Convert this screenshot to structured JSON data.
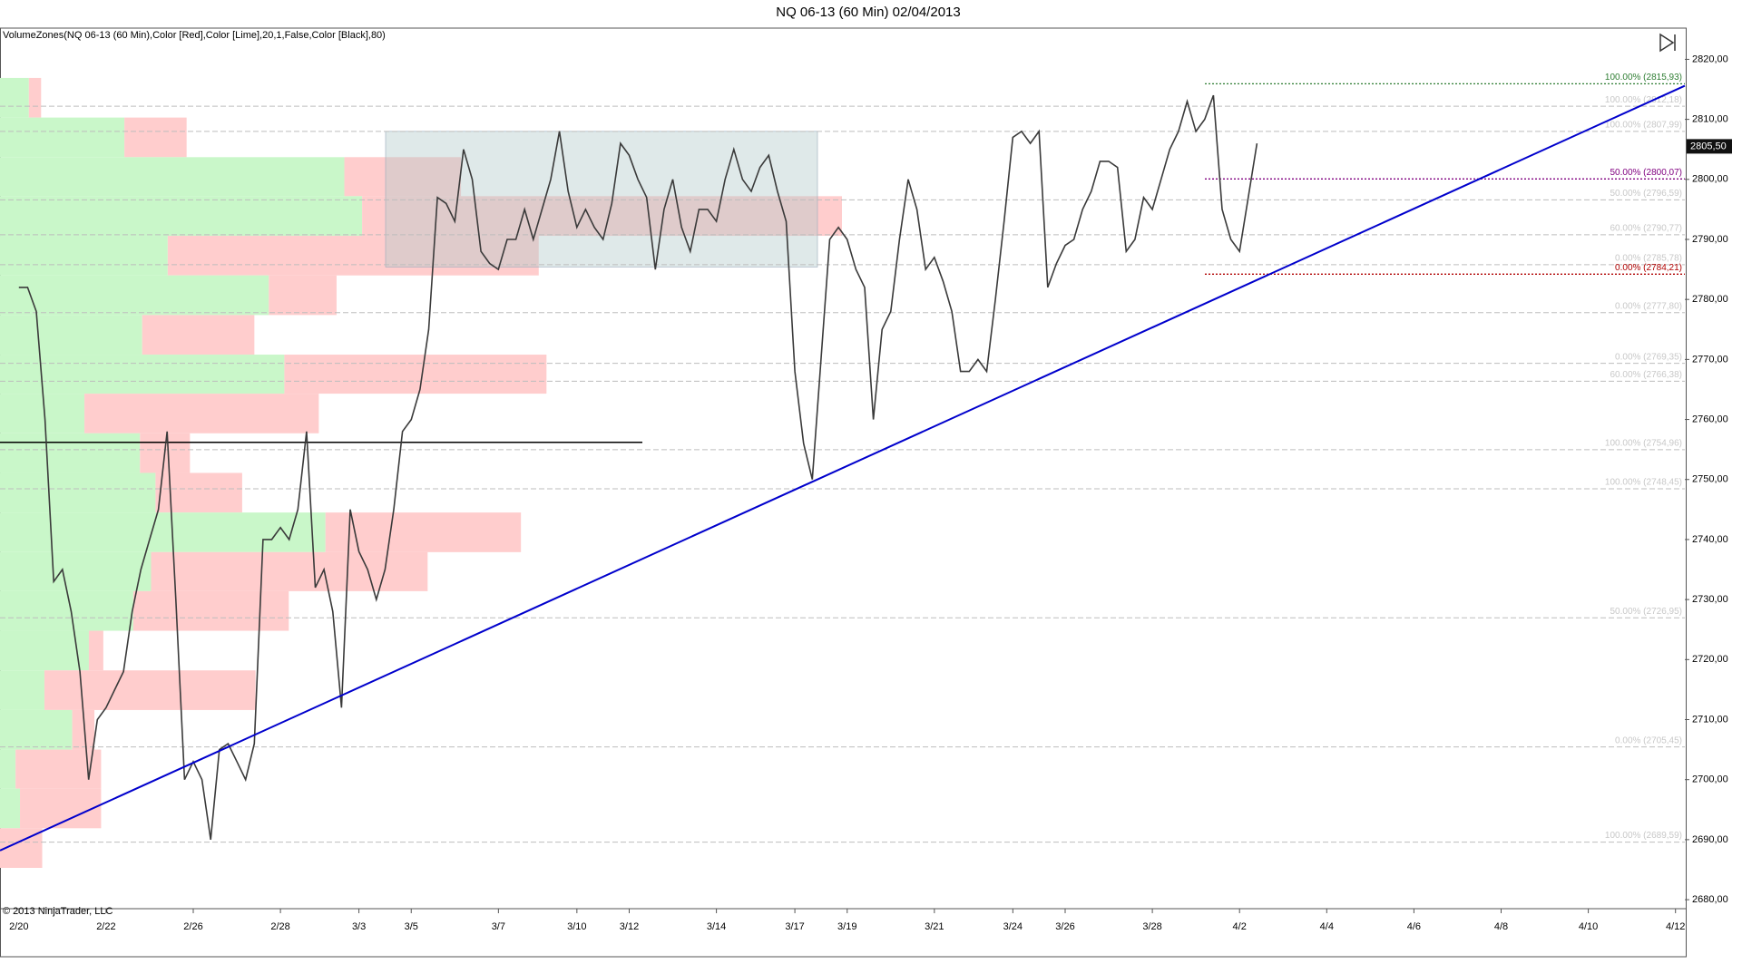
{
  "chart_data": {
    "type": "price-bars",
    "title": "NQ 06-13 (60 Min)  02/04/2013",
    "indicator_label": "VolumeZones(NQ 06-13 (60 Min),Color [Red],Color [Lime],20,1,False,Color [Black],80)",
    "copyright": "© 2013 NinjaTrader, LLC",
    "categories": [
      "2/20",
      null,
      null,
      null,
      null,
      null,
      null,
      null,
      null,
      null,
      "2/22",
      null,
      null,
      null,
      null,
      null,
      null,
      null,
      null,
      null,
      "2/26",
      null,
      null,
      null,
      null,
      null,
      null,
      null,
      null,
      null,
      "2/28",
      null,
      null,
      null,
      null,
      null,
      null,
      null,
      null,
      "3/3",
      null,
      null,
      null,
      null,
      null,
      "3/5",
      null,
      null,
      null,
      null,
      null,
      null,
      null,
      null,
      null,
      "3/7",
      null,
      null,
      null,
      null,
      null,
      null,
      null,
      null,
      "3/10",
      null,
      null,
      null,
      null,
      null,
      "3/12",
      null,
      null,
      null,
      null,
      null,
      null,
      null,
      null,
      null,
      "3/14",
      null,
      null,
      null,
      null,
      null,
      null,
      null,
      null,
      "3/17",
      null,
      null,
      null,
      null,
      null,
      "3/19",
      null,
      null,
      null,
      null,
      null,
      null,
      null,
      null,
      null,
      "3/21",
      null,
      null,
      null,
      null,
      null,
      null,
      null,
      null,
      "3/24",
      null,
      null,
      null,
      null,
      null,
      "3/26",
      null,
      null,
      null,
      null,
      null,
      null,
      null,
      null,
      null,
      "3/28",
      null,
      null,
      null,
      null,
      null,
      null,
      null,
      null,
      null,
      "4/2",
      null,
      null,
      null,
      null,
      null,
      null,
      null,
      null,
      null,
      "4/4",
      null,
      null,
      null,
      null,
      null,
      null,
      null,
      null,
      null,
      "4/6",
      null,
      null,
      null,
      null,
      null,
      null,
      null,
      null,
      null,
      "4/8",
      null,
      null,
      null,
      null,
      null,
      null,
      null,
      null,
      null,
      "4/10",
      null,
      null,
      null,
      null,
      null,
      null,
      null,
      null,
      null,
      "4/12"
    ],
    "series": [
      {
        "color": "#3a3a3a",
        "values": [
          2782,
          2782,
          2778,
          2760,
          2733,
          2735,
          2728,
          2718,
          2700,
          2710,
          2712,
          2715,
          2718,
          2728,
          2735,
          2740,
          2745,
          2758,
          2730,
          2700,
          2703,
          2700,
          2690,
          2705,
          2706,
          2703,
          2700,
          2706,
          2740,
          2740,
          2742,
          2740,
          2745,
          2758,
          2732,
          2735,
          2728,
          2712,
          2745,
          2738,
          2735,
          2730,
          2735,
          2745,
          2758,
          2760,
          2765,
          2775,
          2797,
          2796,
          2793,
          2805,
          2800,
          2788,
          2786,
          2785,
          2790,
          2790,
          2795,
          2790,
          2795,
          2800,
          2808,
          2798,
          2792,
          2795,
          2792,
          2790,
          2796,
          2806,
          2804,
          2800,
          2797,
          2785,
          2795,
          2800,
          2792,
          2788,
          2795,
          2795,
          2793,
          2800,
          2805,
          2800,
          2798,
          2802,
          2804,
          2798,
          2793,
          2768,
          2756,
          2750,
          2770,
          2790,
          2792,
          2790,
          2785,
          2782,
          2760,
          2775,
          2778,
          2790,
          2800,
          2795,
          2785,
          2787,
          2783,
          2778,
          2768,
          2768,
          2770,
          2768,
          2780,
          2793,
          2807,
          2808,
          2806,
          2808,
          2782,
          2786,
          2789,
          2790,
          2795,
          2798,
          2803,
          2803,
          2802,
          2788,
          2790,
          2797,
          2795,
          2800,
          2805,
          2808,
          2813,
          2808,
          2810,
          2814,
          2795,
          2790,
          2788,
          2797,
          2806,
          null,
          null,
          null,
          null,
          null,
          null,
          null,
          null,
          null,
          null,
          null,
          null,
          null,
          null,
          null,
          null,
          null,
          null,
          null,
          null,
          null,
          null,
          null,
          null,
          null,
          null,
          null,
          null,
          null,
          null,
          null,
          null,
          null,
          null,
          null,
          null,
          null,
          null,
          null,
          null,
          null,
          null,
          null,
          null,
          null,
          null,
          null,
          null
        ]
      }
    ],
    "ylim": [
      2678.5,
      2825.2
    ],
    "yticks": [
      {
        "value": 2680,
        "label": "2680,00"
      },
      {
        "value": 2690,
        "label": "2690,00"
      },
      {
        "value": 2700,
        "label": "2700,00"
      },
      {
        "value": 2710,
        "label": "2710,00"
      },
      {
        "value": 2720,
        "label": "2720,00"
      },
      {
        "value": 2730,
        "label": "2730,00"
      },
      {
        "value": 2740,
        "label": "2740,00"
      },
      {
        "value": 2750,
        "label": "2750,00"
      },
      {
        "value": 2760,
        "label": "2760,00"
      },
      {
        "value": 2770,
        "label": "2770,00"
      },
      {
        "value": 2780,
        "label": "2780,00"
      },
      {
        "value": 2790,
        "label": "2790,00"
      },
      {
        "value": 2800,
        "label": "2800,00"
      },
      {
        "value": 2810,
        "label": "2810,00"
      },
      {
        "value": 2820,
        "label": "2820,00"
      }
    ],
    "last_price": {
      "value": 2805.5,
      "label": "2805,50"
    },
    "buy_color": "#c9f7c9",
    "sell_color": "#ffcdcd",
    "volume_zones": [
      {
        "high": 2816.9,
        "low": 2810.3,
        "buy": 26,
        "sell": 11
      },
      {
        "high": 2810.3,
        "low": 2803.7,
        "buy": 112,
        "sell": 56
      },
      {
        "high": 2803.7,
        "low": 2797.2,
        "buy": 310,
        "sell": 105
      },
      {
        "high": 2797.2,
        "low": 2790.6,
        "buy": 326,
        "sell": 432
      },
      {
        "high": 2790.6,
        "low": 2784.0,
        "buy": 151,
        "sell": 334
      },
      {
        "high": 2784.0,
        "low": 2777.4,
        "buy": 242,
        "sell": 61
      },
      {
        "high": 2777.4,
        "low": 2770.8,
        "buy": 128,
        "sell": 101
      },
      {
        "high": 2770.8,
        "low": 2764.3,
        "buy": 256,
        "sell": 236
      },
      {
        "high": 2764.3,
        "low": 2757.7,
        "buy": 76,
        "sell": 211
      },
      {
        "high": 2757.7,
        "low": 2751.1,
        "buy": 126,
        "sell": 45
      },
      {
        "high": 2751.1,
        "low": 2744.5,
        "buy": 140,
        "sell": 78
      },
      {
        "high": 2744.5,
        "low": 2737.9,
        "buy": 293,
        "sell": 176
      },
      {
        "high": 2737.9,
        "low": 2731.4,
        "buy": 136,
        "sell": 249
      },
      {
        "high": 2731.4,
        "low": 2724.8,
        "buy": 120,
        "sell": 140
      },
      {
        "high": 2724.8,
        "low": 2718.2,
        "buy": 80,
        "sell": 13
      },
      {
        "high": 2718.2,
        "low": 2711.6,
        "buy": 40,
        "sell": 190
      },
      {
        "high": 2711.6,
        "low": 2705.0,
        "buy": 65,
        "sell": 20
      },
      {
        "high": 2705.0,
        "low": 2698.5,
        "buy": 14,
        "sell": 77
      },
      {
        "high": 2698.5,
        "low": 2691.9,
        "buy": 18,
        "sell": 73
      },
      {
        "high": 2691.9,
        "low": 2685.3,
        "buy": 0,
        "sell": 38
      }
    ],
    "levels": [
      {
        "value": 2815.93,
        "label": "100.00% (2815,93)",
        "color": "#2e7d32"
      },
      {
        "value": 2812.18,
        "label": "100.00% (2812,18)",
        "color": "#bdbdbd"
      },
      {
        "value": 2807.99,
        "label": "100.00% (2807,99)",
        "color": "#bdbdbd"
      },
      {
        "value": 2800.07,
        "label": "50.00% (2800,07)",
        "color": "#800080"
      },
      {
        "value": 2796.59,
        "label": "50.00% (2796,59)",
        "color": "#bdbdbd"
      },
      {
        "value": 2790.77,
        "label": "60.00% (2790,77)",
        "color": "#bdbdbd"
      },
      {
        "value": 2785.78,
        "label": "0.00% (2785,78)",
        "color": "#bdbdbd"
      },
      {
        "value": 2784.21,
        "label": "0.00% (2784,21)",
        "color": "#b00000"
      },
      {
        "value": 2777.8,
        "label": "0.00% (2777,80)",
        "color": "#bdbdbd"
      },
      {
        "value": 2769.35,
        "label": "0.00% (2769,35)",
        "color": "#bdbdbd"
      },
      {
        "value": 2766.38,
        "label": "60.00% (2766,38)",
        "color": "#bdbdbd"
      },
      {
        "value": 2754.96,
        "label": "100.00% (2754,96)",
        "color": "#bdbdbd"
      },
      {
        "value": 2748.45,
        "label": "100.00% (2748,45)",
        "color": "#bdbdbd"
      },
      {
        "value": 2726.95,
        "label": "50.00% (2726,95)",
        "color": "#bdbdbd"
      },
      {
        "value": 2705.45,
        "label": "0.00% (2705,45)",
        "color": "#bdbdbd"
      },
      {
        "value": 2689.59,
        "label": "100.00% (2689,59)",
        "color": "#bdbdbd"
      }
    ],
    "trendline": {
      "from": 2688.2,
      "to": 2815.6,
      "color": "#0000cc"
    },
    "support_line": {
      "value": 2756.2,
      "color": "#000000"
    },
    "box": {
      "high": 2808,
      "low": 2785.4,
      "color": "#b0c8c8"
    }
  }
}
